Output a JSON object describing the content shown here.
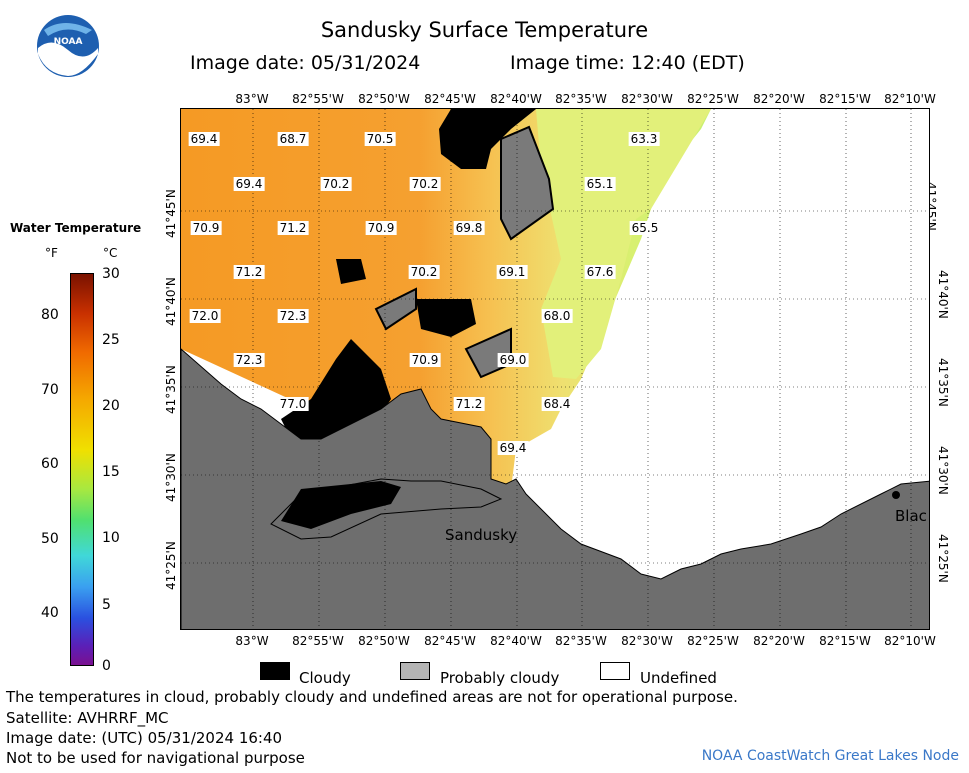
{
  "header": {
    "title": "Sandusky Surface Temperature",
    "image_date": "Image date: 05/31/2024",
    "image_time": "Image time: 12:40 (EDT)"
  },
  "logo": {
    "text": "NOAA"
  },
  "legend": {
    "title": "Water Temperature",
    "unit_f": "°F",
    "unit_c": "°C",
    "f_ticks": [
      "80",
      "70",
      "60",
      "50",
      "40"
    ],
    "c_ticks": [
      "30",
      "25",
      "20",
      "15",
      "10",
      "5",
      "0"
    ]
  },
  "axes": {
    "lon_labels": [
      "83°W",
      "82°55'W",
      "82°50'W",
      "82°45'W",
      "82°40'W",
      "82°35'W",
      "82°30'W",
      "82°25'W",
      "82°20'W",
      "82°15'W",
      "82°10'W"
    ],
    "lat_labels": [
      "41°45'N",
      "41°40'N",
      "41°35'N",
      "41°30'N",
      "41°25'N"
    ]
  },
  "map": {
    "temperatures": [
      "69.4",
      "68.7",
      "70.5",
      "63.3",
      "69.4",
      "70.2",
      "70.2",
      "65.1",
      "70.9",
      "71.2",
      "70.9",
      "69.8",
      "65.5",
      "71.2",
      "70.2",
      "69.1",
      "67.6",
      "72.0",
      "72.3",
      "68.0",
      "72.3",
      "70.9",
      "69.0",
      "77.0",
      "71.2",
      "68.4",
      "69.4"
    ],
    "places": {
      "sandusky": "Sandusky",
      "black": "Blac"
    }
  },
  "key": {
    "cloudy": "Cloudy",
    "probably_cloudy": "Probably cloudy",
    "undefined": "Undefined"
  },
  "colors": {
    "cloudy": "#000000",
    "probably_cloudy": "#b4b4b4",
    "undefined": "#ffffff",
    "land": "#6e6e6e",
    "warm_water": "#f59a2a",
    "cool_water": "#e8f070"
  },
  "footer": {
    "note": "The temperatures in cloud, probably cloudy and undefined areas are not for operational purpose.",
    "satellite": "Satellite: AVHRRF_MC",
    "utc_date": "Image date: (UTC) 05/31/2024  16:40",
    "nav": "Not to be used for navigational purpose",
    "credit": "NOAA CoastWatch Great Lakes Node"
  }
}
